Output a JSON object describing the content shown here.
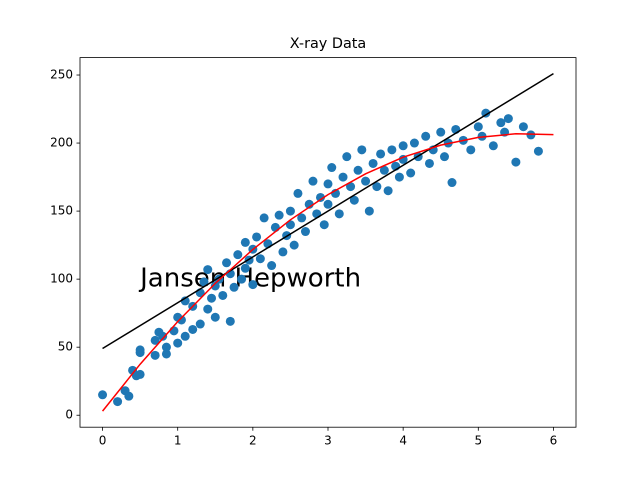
{
  "chart_data": {
    "type": "scatter",
    "title": "X-ray Data",
    "xlim": [
      -0.3,
      6.3
    ],
    "ylim": [
      -8.8,
      262.8
    ],
    "xticks": [
      0,
      1,
      2,
      3,
      4,
      5,
      6
    ],
    "yticks": [
      0,
      50,
      100,
      150,
      200,
      250
    ],
    "annotations": [
      {
        "text": "Jansen Hepworth",
        "x": 0.5,
        "y": 100
      }
    ],
    "series": [
      {
        "mode": "markers",
        "color": "#1f77b4",
        "x": [
          0,
          0.2,
          0.3,
          0.35,
          0.4,
          0.45,
          0.5,
          0.5,
          0.5,
          0.7,
          0.7,
          0.75,
          0.8,
          0.85,
          0.85,
          0.95,
          1.0,
          1.0,
          1.05,
          1.1,
          1.1,
          1.2,
          1.2,
          1.3,
          1.3,
          1.35,
          1.4,
          1.4,
          1.45,
          1.5,
          1.5,
          1.55,
          1.6,
          1.65,
          1.7,
          1.7,
          1.75,
          1.8,
          1.85,
          1.9,
          1.9,
          1.95,
          2.0,
          2.0,
          2.05,
          2.1,
          2.15,
          2.2,
          2.25,
          2.3,
          2.35,
          2.4,
          2.45,
          2.5,
          2.5,
          2.55,
          2.6,
          2.65,
          2.7,
          2.75,
          2.8,
          2.85,
          2.9,
          2.95,
          3.0,
          3.0,
          3.05,
          3.1,
          3.15,
          3.2,
          3.25,
          3.3,
          3.35,
          3.4,
          3.45,
          3.5,
          3.55,
          3.6,
          3.65,
          3.7,
          3.75,
          3.8,
          3.85,
          3.9,
          3.95,
          4.0,
          4.0,
          4.1,
          4.15,
          4.2,
          4.3,
          4.35,
          4.4,
          4.5,
          4.55,
          4.6,
          4.65,
          4.7,
          4.8,
          4.9,
          5.0,
          5.05,
          5.1,
          5.2,
          5.3,
          5.35,
          5.4,
          5.5,
          5.6,
          5.7,
          5.8
        ],
        "values": [
          15,
          10,
          18,
          14,
          33,
          29,
          30,
          46,
          48,
          44,
          55,
          61,
          58,
          45,
          50,
          62,
          72,
          53,
          70,
          58,
          84,
          80,
          63,
          67,
          90,
          98,
          78,
          107,
          86,
          95,
          72,
          100,
          88,
          112,
          69,
          104,
          94,
          118,
          100,
          127,
          108,
          114,
          96,
          122,
          131,
          115,
          145,
          126,
          110,
          138,
          147,
          120,
          132,
          150,
          140,
          125,
          163,
          145,
          135,
          155,
          172,
          148,
          160,
          140,
          170,
          155,
          182,
          163,
          148,
          175,
          190,
          168,
          158,
          180,
          195,
          172,
          150,
          185,
          168,
          192,
          180,
          165,
          195,
          183,
          175,
          198,
          188,
          178,
          200,
          190,
          205,
          185,
          195,
          208,
          190,
          200,
          171,
          210,
          202,
          195,
          212,
          205,
          222,
          198,
          215,
          208,
          218,
          186,
          212,
          206,
          194
        ]
      },
      {
        "mode": "line",
        "color": "#000000",
        "x": [
          0,
          6
        ],
        "values": [
          49,
          251
        ]
      },
      {
        "mode": "line",
        "color": "#ff0000",
        "x": [
          0,
          0.5,
          1,
          1.5,
          2,
          2.5,
          3,
          3.5,
          4,
          4.5,
          5,
          5.5,
          6
        ],
        "values": [
          3,
          37.5,
          68.8,
          96.9,
          121.8,
          143.6,
          162.1,
          177.4,
          189.6,
          198.5,
          204.2,
          206.8,
          206.2
        ]
      }
    ]
  }
}
